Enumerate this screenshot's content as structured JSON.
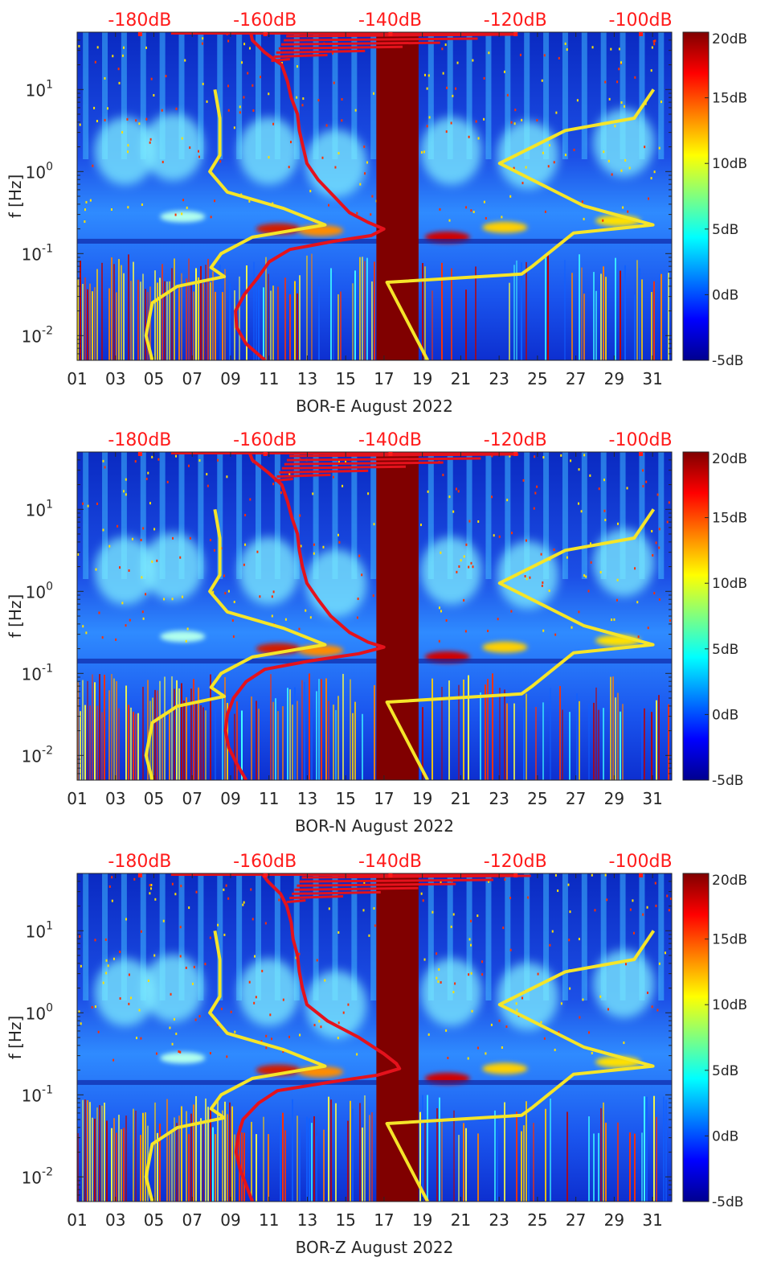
{
  "chart_data": [
    {
      "type": "heatmap",
      "title": "",
      "xlabel": "BOR-E August 2022",
      "ylabel": "f [Hz]",
      "x_ticks": [
        "01",
        "03",
        "05",
        "07",
        "09",
        "11",
        "13",
        "15",
        "17",
        "19",
        "21",
        "23",
        "25",
        "27",
        "29",
        "31"
      ],
      "x_range": [
        1,
        32
      ],
      "y_scale": "log",
      "y_range": [
        0.005,
        50
      ],
      "y_ticks": [
        {
          "exp": -2,
          "label_base": "10",
          "label_exp": "-2"
        },
        {
          "exp": -1,
          "label_base": "10",
          "label_exp": "-1"
        },
        {
          "exp": 0,
          "label_base": "10",
          "label_exp": "0"
        },
        {
          "exp": 1,
          "label_base": "10",
          "label_exp": "1"
        }
      ],
      "top_axis_labels": [
        "-180dB",
        "-160dB",
        "-140dB",
        "-120dB",
        "-100dB"
      ],
      "top_axis_range_dB": [
        -190,
        -95
      ],
      "colorbar": {
        "labels": [
          "20dB",
          "15dB",
          "10dB",
          "5dB",
          "0dB",
          "-5dB"
        ],
        "range": [
          -5,
          20
        ]
      },
      "gap_days": [
        16.6,
        18.8
      ],
      "red_profile": {
        "name": "median PSD",
        "color": "#e4121c",
        "points_dB_logf": [
          [
            -162.3,
            1.7
          ],
          [
            -162,
            1.6
          ],
          [
            -160,
            1.45
          ],
          [
            -157.3,
            1.3
          ],
          [
            -156.4,
            1.1
          ],
          [
            -155.8,
            0.9
          ],
          [
            -154.8,
            0.7
          ],
          [
            -154.5,
            0.5
          ],
          [
            -153.9,
            0.3
          ],
          [
            -153.3,
            0.1
          ],
          [
            -151.5,
            -0.1
          ],
          [
            -149,
            -0.3
          ],
          [
            -146.5,
            -0.5
          ],
          [
            -143.5,
            -0.62
          ],
          [
            -141,
            -0.7
          ],
          [
            -143,
            -0.78
          ],
          [
            -149,
            -0.85
          ],
          [
            -156,
            -0.95
          ],
          [
            -159.3,
            -1.1
          ],
          [
            -161.2,
            -1.3
          ],
          [
            -163.3,
            -1.5
          ],
          [
            -164.7,
            -1.7
          ],
          [
            -164.5,
            -1.9
          ],
          [
            -163,
            -2.1
          ],
          [
            -160,
            -2.3
          ]
        ]
      },
      "yellow_curves": [
        {
          "name": "low-noise model",
          "color": "#f5e529",
          "points_dB_logf": [
            [
              -178,
              -2.3
            ],
            [
              -179,
              -2.0
            ],
            [
              -178,
              -1.6
            ],
            [
              -174,
              -1.4
            ],
            [
              -166.5,
              -1.28
            ],
            [
              -168.6,
              -1.17
            ],
            [
              -167,
              -1.0
            ],
            [
              -162,
              -0.8
            ],
            [
              -150.4,
              -0.65
            ],
            [
              -157,
              -0.45
            ],
            [
              -166,
              -0.25
            ],
            [
              -168.8,
              0.0
            ],
            [
              -167.2,
              0.2
            ],
            [
              -167.2,
              0.65
            ],
            [
              -168,
              1.0
            ]
          ]
        },
        {
          "name": "high-noise model",
          "color": "#f5e529",
          "points_dB_logf": [
            [
              -134,
              -2.3
            ],
            [
              -140.5,
              -1.35
            ],
            [
              -119,
              -1.25
            ],
            [
              -117.2,
              -1.15
            ],
            [
              -110.7,
              -0.75
            ],
            [
              -98,
              -0.65
            ],
            [
              -109,
              -0.42
            ],
            [
              -122.5,
              0.1
            ],
            [
              -112,
              0.5
            ],
            [
              -101,
              0.65
            ],
            [
              -97.9,
              1.0
            ]
          ]
        }
      ]
    },
    {
      "type": "heatmap",
      "title": "",
      "xlabel": "BOR-N August 2022",
      "ylabel": "f [Hz]",
      "x_ticks": [
        "01",
        "03",
        "05",
        "07",
        "09",
        "11",
        "13",
        "15",
        "17",
        "19",
        "21",
        "23",
        "25",
        "27",
        "29",
        "31"
      ],
      "x_range": [
        1,
        32
      ],
      "y_scale": "log",
      "y_range": [
        0.005,
        50
      ],
      "y_ticks": [
        {
          "exp": -2,
          "label_base": "10",
          "label_exp": "-2"
        },
        {
          "exp": -1,
          "label_base": "10",
          "label_exp": "-1"
        },
        {
          "exp": 0,
          "label_base": "10",
          "label_exp": "0"
        },
        {
          "exp": 1,
          "label_base": "10",
          "label_exp": "1"
        }
      ],
      "top_axis_labels": [
        "-180dB",
        "-160dB",
        "-140dB",
        "-120dB",
        "-100dB"
      ],
      "top_axis_range_dB": [
        -190,
        -95
      ],
      "colorbar": {
        "labels": [
          "20dB",
          "15dB",
          "10dB",
          "5dB",
          "0dB",
          "-5dB"
        ],
        "range": [
          -5,
          20
        ]
      },
      "gap_days": [
        16.6,
        18.8
      ],
      "red_profile": {
        "name": "median PSD",
        "color": "#e4121c",
        "points_dB_logf": [
          [
            -162.5,
            1.7
          ],
          [
            -162,
            1.6
          ],
          [
            -159.5,
            1.45
          ],
          [
            -157.3,
            1.3
          ],
          [
            -156.4,
            1.1
          ],
          [
            -155.7,
            0.9
          ],
          [
            -154.8,
            0.7
          ],
          [
            -154.5,
            0.5
          ],
          [
            -154,
            0.3
          ],
          [
            -153.3,
            0.1
          ],
          [
            -151.5,
            -0.1
          ],
          [
            -149.5,
            -0.3
          ],
          [
            -146.5,
            -0.5
          ],
          [
            -143.5,
            -0.62
          ],
          [
            -141,
            -0.68
          ],
          [
            -145,
            -0.76
          ],
          [
            -153,
            -0.85
          ],
          [
            -160,
            -0.95
          ],
          [
            -163,
            -1.1
          ],
          [
            -165,
            -1.3
          ],
          [
            -166,
            -1.5
          ],
          [
            -166.3,
            -1.7
          ],
          [
            -165.8,
            -1.9
          ],
          [
            -164.5,
            -2.1
          ],
          [
            -163,
            -2.3
          ]
        ]
      },
      "yellow_curves": [
        {
          "name": "low-noise model",
          "color": "#f5e529",
          "points_dB_logf": [
            [
              -178,
              -2.3
            ],
            [
              -179,
              -2.0
            ],
            [
              -178,
              -1.6
            ],
            [
              -174,
              -1.4
            ],
            [
              -166.5,
              -1.28
            ],
            [
              -168.6,
              -1.17
            ],
            [
              -167,
              -1.0
            ],
            [
              -162,
              -0.8
            ],
            [
              -150.4,
              -0.65
            ],
            [
              -157,
              -0.45
            ],
            [
              -166,
              -0.25
            ],
            [
              -168.8,
              0.0
            ],
            [
              -167.2,
              0.2
            ],
            [
              -167.2,
              0.65
            ],
            [
              -168,
              1.0
            ]
          ]
        },
        {
          "name": "high-noise model",
          "color": "#f5e529",
          "points_dB_logf": [
            [
              -134,
              -2.3
            ],
            [
              -140.5,
              -1.35
            ],
            [
              -119,
              -1.25
            ],
            [
              -117.2,
              -1.15
            ],
            [
              -110.7,
              -0.75
            ],
            [
              -98,
              -0.65
            ],
            [
              -109,
              -0.42
            ],
            [
              -122.5,
              0.1
            ],
            [
              -112,
              0.5
            ],
            [
              -101,
              0.65
            ],
            [
              -97.9,
              1.0
            ]
          ]
        }
      ]
    },
    {
      "type": "heatmap",
      "title": "",
      "xlabel": "BOR-Z August 2022",
      "ylabel": "f [Hz]",
      "x_ticks": [
        "01",
        "03",
        "05",
        "07",
        "09",
        "11",
        "13",
        "15",
        "17",
        "19",
        "21",
        "23",
        "25",
        "27",
        "29",
        "31"
      ],
      "x_range": [
        1,
        32
      ],
      "y_scale": "log",
      "y_range": [
        0.005,
        50
      ],
      "y_ticks": [
        {
          "exp": -2,
          "label_base": "10",
          "label_exp": "-2"
        },
        {
          "exp": -1,
          "label_base": "10",
          "label_exp": "-1"
        },
        {
          "exp": 0,
          "label_base": "10",
          "label_exp": "0"
        },
        {
          "exp": 1,
          "label_base": "10",
          "label_exp": "1"
        }
      ],
      "top_axis_labels": [
        "-180dB",
        "-160dB",
        "-140dB",
        "-120dB",
        "-100dB"
      ],
      "top_axis_range_dB": [
        -190,
        -95
      ],
      "colorbar": {
        "labels": [
          "20dB",
          "15dB",
          "10dB",
          "5dB",
          "0dB",
          "-5dB"
        ],
        "range": [
          -5,
          20
        ]
      },
      "gap_days": [
        16.6,
        18.8
      ],
      "red_profile": {
        "name": "median PSD",
        "color": "#e4121c",
        "points_dB_logf": [
          [
            -160.5,
            1.7
          ],
          [
            -159.5,
            1.6
          ],
          [
            -157.5,
            1.45
          ],
          [
            -156.5,
            1.3
          ],
          [
            -155.8,
            1.1
          ],
          [
            -155.5,
            0.9
          ],
          [
            -154.8,
            0.7
          ],
          [
            -154.5,
            0.5
          ],
          [
            -154,
            0.3
          ],
          [
            -153.3,
            0.1
          ],
          [
            -150,
            -0.1
          ],
          [
            -145,
            -0.3
          ],
          [
            -141,
            -0.5
          ],
          [
            -139,
            -0.62
          ],
          [
            -138.5,
            -0.68
          ],
          [
            -142,
            -0.76
          ],
          [
            -150,
            -0.85
          ],
          [
            -158,
            -0.95
          ],
          [
            -161,
            -1.1
          ],
          [
            -163.5,
            -1.3
          ],
          [
            -164.3,
            -1.5
          ],
          [
            -164.6,
            -1.7
          ],
          [
            -164,
            -1.9
          ],
          [
            -163,
            -2.1
          ],
          [
            -162,
            -2.3
          ]
        ]
      },
      "yellow_curves": [
        {
          "name": "low-noise model",
          "color": "#f5e529",
          "points_dB_logf": [
            [
              -178,
              -2.3
            ],
            [
              -179,
              -2.0
            ],
            [
              -178,
              -1.6
            ],
            [
              -174,
              -1.4
            ],
            [
              -166.5,
              -1.28
            ],
            [
              -168.6,
              -1.17
            ],
            [
              -167,
              -1.0
            ],
            [
              -162,
              -0.8
            ],
            [
              -150.4,
              -0.65
            ],
            [
              -157,
              -0.45
            ],
            [
              -166,
              -0.25
            ],
            [
              -168.8,
              0.0
            ],
            [
              -167.2,
              0.2
            ],
            [
              -167.2,
              0.65
            ],
            [
              -168,
              1.0
            ]
          ]
        },
        {
          "name": "high-noise model",
          "color": "#f5e529",
          "points_dB_logf": [
            [
              -134,
              -2.3
            ],
            [
              -140.5,
              -1.35
            ],
            [
              -119,
              -1.25
            ],
            [
              -117.2,
              -1.15
            ],
            [
              -110.7,
              -0.75
            ],
            [
              -98,
              -0.65
            ],
            [
              -109,
              -0.42
            ],
            [
              -122.5,
              0.1
            ],
            [
              -112,
              0.5
            ],
            [
              -101,
              0.65
            ],
            [
              -97.9,
              1.0
            ]
          ]
        }
      ]
    }
  ]
}
